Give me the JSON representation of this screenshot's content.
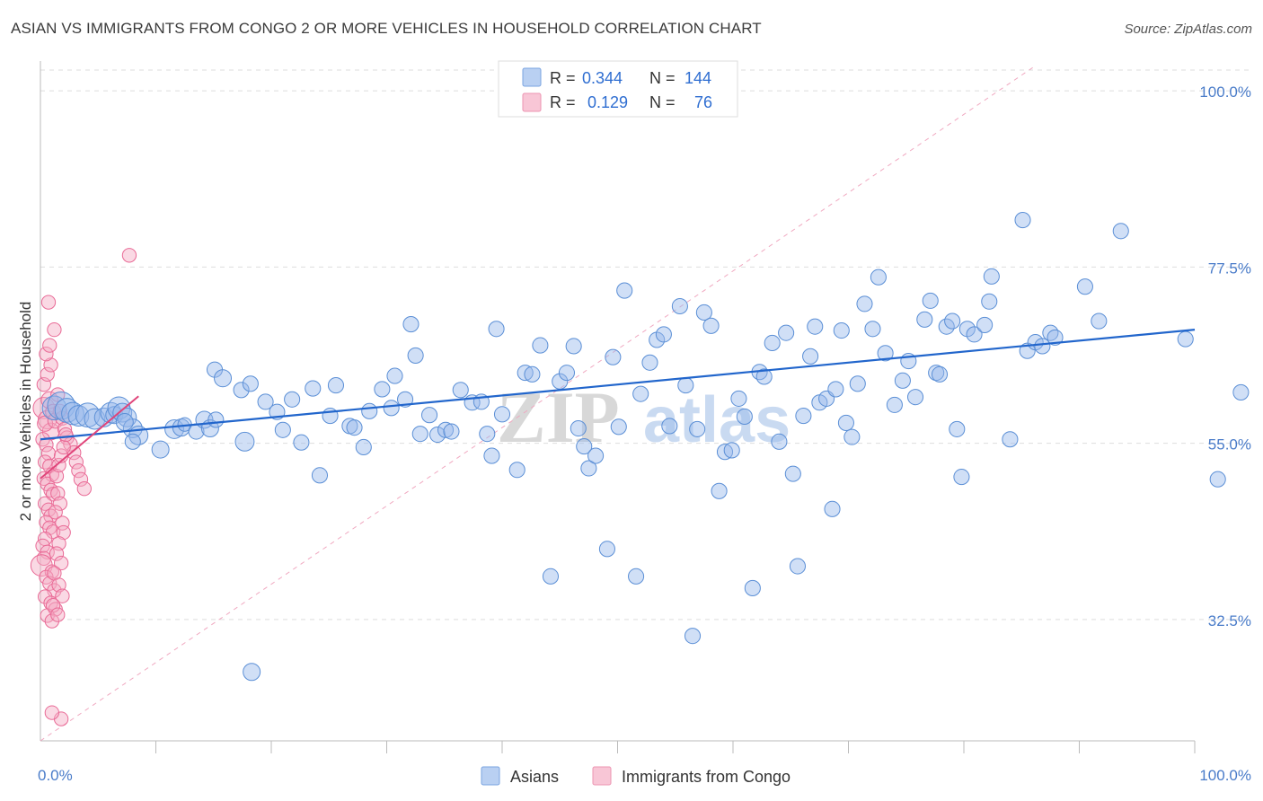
{
  "header": {
    "title": "ASIAN VS IMMIGRANTS FROM CONGO 2 OR MORE VEHICLES IN HOUSEHOLD CORRELATION CHART",
    "source": "Source: ZipAtlas.com"
  },
  "watermark": {
    "zip": "ZIP",
    "atlas": "atlas"
  },
  "colors": {
    "blue": "#5b8fd6",
    "blue_fill": "rgba(150,185,235,0.45)",
    "blue_line": "#2266cc",
    "pink": "#e96a96",
    "pink_fill": "rgba(245,170,195,0.45)",
    "pink_line": "#e0457a",
    "tick_text": "#4a7cc9",
    "grid": "#dddddd"
  },
  "legend": {
    "rows": [
      {
        "r_label": "R =",
        "r_value": "0.344",
        "n_label": "N =",
        "n_value": "144"
      },
      {
        "r_label": "R =",
        "r_value": "0.129",
        "n_label": "N =",
        "n_value": "76"
      }
    ]
  },
  "bottom_legend": {
    "series1": "Asians",
    "series2": "Immigrants from Congo"
  },
  "chart_data": {
    "type": "scatter",
    "ylabel": "2 or more Vehicles in Household",
    "xlim": [
      0,
      100
    ],
    "ylim": [
      17,
      103
    ],
    "ytick_labels": [
      "100.0%",
      "77.5%",
      "55.0%",
      "32.5%"
    ],
    "ytick_values": [
      100,
      77.5,
      55,
      32.5
    ],
    "xtick_labels": [
      "0.0%",
      "100.0%"
    ],
    "xtick_values": [
      0,
      100
    ],
    "grid": true,
    "legend_position": "top-center",
    "series": [
      {
        "name": "Asians",
        "r": 0.344,
        "n": 144,
        "trend": {
          "x": [
            0,
            100
          ],
          "y": [
            55.5,
            69.5
          ]
        },
        "points": [
          [
            1.2,
            59.5,
            14
          ],
          [
            1.8,
            59.8,
            16
          ],
          [
            2.3,
            59.2,
            14
          ],
          [
            2.8,
            58.8,
            13
          ],
          [
            3.3,
            58.5,
            12
          ],
          [
            4.1,
            58.6,
            14
          ],
          [
            4.7,
            58.1,
            12
          ],
          [
            5.5,
            58.3,
            11
          ],
          [
            6.1,
            58.9,
            12
          ],
          [
            6.4,
            58.6,
            10
          ],
          [
            6.8,
            59.5,
            13
          ],
          [
            7.1,
            58.9,
            11
          ],
          [
            7.5,
            58.3,
            11
          ],
          [
            8.0,
            56.9,
            11
          ],
          [
            8.5,
            56.0,
            11
          ],
          [
            8.0,
            55.2,
            9
          ],
          [
            7.3,
            57.7,
            10
          ],
          [
            10.4,
            54.2,
            10
          ],
          [
            11.6,
            56.8,
            11
          ],
          [
            12.2,
            57.0,
            10
          ],
          [
            12.5,
            57.4,
            8
          ],
          [
            13.5,
            56.5,
            9
          ],
          [
            14.2,
            58.0,
            10
          ],
          [
            14.7,
            56.9,
            10
          ],
          [
            15.1,
            64.4,
            9
          ],
          [
            15.8,
            63.3,
            10
          ],
          [
            15.2,
            58.0,
            9
          ],
          [
            17.7,
            55.2,
            11
          ],
          [
            17.4,
            61.8,
            9
          ],
          [
            18.2,
            62.6,
            9
          ],
          [
            19.5,
            60.3,
            9
          ],
          [
            20.5,
            59.0,
            9
          ],
          [
            21.0,
            56.7,
            9
          ],
          [
            21.8,
            60.6,
            9
          ],
          [
            22.6,
            55.1,
            9
          ],
          [
            23.6,
            62.0,
            9
          ],
          [
            24.2,
            50.9,
            9
          ],
          [
            25.1,
            58.5,
            9
          ],
          [
            25.6,
            62.4,
            9
          ],
          [
            26.8,
            57.2,
            9
          ],
          [
            27.2,
            57.0,
            9
          ],
          [
            28.0,
            54.5,
            9
          ],
          [
            28.5,
            59.1,
            9
          ],
          [
            29.6,
            61.9,
            9
          ],
          [
            30.4,
            59.5,
            9
          ],
          [
            30.7,
            63.6,
            9
          ],
          [
            31.6,
            60.6,
            9
          ],
          [
            32.1,
            70.2,
            9
          ],
          [
            32.5,
            66.2,
            9
          ],
          [
            32.9,
            56.2,
            9
          ],
          [
            33.7,
            58.6,
            9
          ],
          [
            34.4,
            56.1,
            9
          ],
          [
            35.1,
            56.7,
            9
          ],
          [
            35.6,
            56.5,
            9
          ],
          [
            36.4,
            61.8,
            9
          ],
          [
            37.4,
            60.2,
            9
          ],
          [
            38.2,
            60.3,
            9
          ],
          [
            38.7,
            56.2,
            9
          ],
          [
            39.1,
            53.4,
            9
          ],
          [
            39.5,
            69.6,
            9
          ],
          [
            40.0,
            58.7,
            9
          ],
          [
            41.3,
            51.6,
            9
          ],
          [
            42.0,
            64.0,
            9
          ],
          [
            42.6,
            63.8,
            9
          ],
          [
            43.3,
            67.5,
            9
          ],
          [
            44.2,
            38.0,
            9
          ],
          [
            45.0,
            62.9,
            9
          ],
          [
            45.6,
            64.0,
            9
          ],
          [
            46.2,
            67.4,
            9
          ],
          [
            46.6,
            56.9,
            9
          ],
          [
            47.1,
            54.6,
            9
          ],
          [
            47.5,
            51.8,
            9
          ],
          [
            48.1,
            53.4,
            9
          ],
          [
            49.1,
            41.5,
            9
          ],
          [
            49.6,
            66.0,
            9
          ],
          [
            50.1,
            57.1,
            9
          ],
          [
            50.6,
            74.5,
            9
          ],
          [
            51.6,
            38.0,
            9
          ],
          [
            52.0,
            61.3,
            9
          ],
          [
            52.8,
            65.3,
            9
          ],
          [
            53.4,
            68.2,
            9
          ],
          [
            54.0,
            68.9,
            9
          ],
          [
            54.5,
            57.2,
            9
          ],
          [
            55.4,
            72.5,
            9
          ],
          [
            55.9,
            62.4,
            9
          ],
          [
            56.5,
            30.4,
            9
          ],
          [
            56.9,
            56.8,
            9
          ],
          [
            57.5,
            71.7,
            9
          ],
          [
            58.1,
            70.0,
            9
          ],
          [
            58.8,
            48.9,
            9
          ],
          [
            59.3,
            53.9,
            9
          ],
          [
            59.9,
            54.1,
            9
          ],
          [
            60.5,
            60.7,
            9
          ],
          [
            61.0,
            58.4,
            9
          ],
          [
            61.7,
            36.5,
            9
          ],
          [
            62.3,
            64.1,
            9
          ],
          [
            62.7,
            63.5,
            9
          ],
          [
            63.4,
            67.8,
            9
          ],
          [
            64.0,
            55.2,
            9
          ],
          [
            64.6,
            69.1,
            9
          ],
          [
            65.2,
            51.1,
            9
          ],
          [
            65.6,
            39.3,
            9
          ],
          [
            66.1,
            58.5,
            9
          ],
          [
            66.7,
            66.1,
            9
          ],
          [
            67.1,
            69.9,
            9
          ],
          [
            67.5,
            60.2,
            9
          ],
          [
            68.1,
            60.7,
            9
          ],
          [
            68.6,
            46.6,
            9
          ],
          [
            68.9,
            61.9,
            9
          ],
          [
            69.4,
            69.4,
            9
          ],
          [
            69.8,
            57.6,
            9
          ],
          [
            70.3,
            55.8,
            9
          ],
          [
            70.8,
            62.6,
            9
          ],
          [
            71.4,
            72.8,
            9
          ],
          [
            72.1,
            69.6,
            9
          ],
          [
            72.6,
            76.2,
            9
          ],
          [
            73.2,
            66.5,
            9
          ],
          [
            74.0,
            59.9,
            9
          ],
          [
            74.7,
            63.0,
            9
          ],
          [
            75.2,
            65.5,
            9
          ],
          [
            75.8,
            60.9,
            9
          ],
          [
            76.6,
            70.8,
            9
          ],
          [
            77.1,
            73.2,
            9
          ],
          [
            77.6,
            64.0,
            9
          ],
          [
            77.9,
            63.8,
            9
          ],
          [
            78.5,
            69.9,
            9
          ],
          [
            79.0,
            70.6,
            9
          ],
          [
            79.4,
            56.8,
            9
          ],
          [
            79.8,
            50.7,
            9
          ],
          [
            80.3,
            69.6,
            9
          ],
          [
            80.9,
            68.9,
            9
          ],
          [
            81.8,
            70.1,
            9
          ],
          [
            82.2,
            73.1,
            9
          ],
          [
            82.4,
            76.3,
            9
          ],
          [
            84.0,
            55.5,
            9
          ],
          [
            85.1,
            83.5,
            9
          ],
          [
            85.5,
            66.8,
            9
          ],
          [
            86.2,
            67.9,
            9
          ],
          [
            86.8,
            67.4,
            9
          ],
          [
            87.5,
            69.1,
            9
          ],
          [
            87.9,
            68.5,
            9
          ],
          [
            90.5,
            75.0,
            9
          ],
          [
            91.7,
            70.6,
            9
          ],
          [
            93.6,
            82.1,
            9
          ],
          [
            99.2,
            68.3,
            9
          ],
          [
            102.0,
            50.4,
            9
          ],
          [
            104.0,
            61.5,
            9
          ],
          [
            18.3,
            25.8,
            10
          ]
        ]
      },
      {
        "name": "Immigrants from Congo",
        "r": 0.129,
        "n": 76,
        "trend": {
          "x": [
            0,
            8.5
          ],
          "y": [
            50.5,
            61.0
          ]
        },
        "points": [
          [
            0.3,
            59.5,
            14
          ],
          [
            0.6,
            58.0,
            12
          ],
          [
            0.9,
            56.5,
            11
          ],
          [
            0.4,
            57.5,
            10
          ],
          [
            0.8,
            60.5,
            11
          ],
          [
            1.1,
            59.0,
            10
          ],
          [
            1.3,
            57.9,
            10
          ],
          [
            0.2,
            55.5,
            9
          ],
          [
            0.5,
            54.8,
            9
          ],
          [
            0.7,
            53.7,
            9
          ],
          [
            0.4,
            52.6,
            9
          ],
          [
            0.8,
            52.1,
            9
          ],
          [
            1.0,
            51.0,
            9
          ],
          [
            0.3,
            50.5,
            9
          ],
          [
            0.6,
            49.8,
            9
          ],
          [
            0.9,
            49.0,
            9
          ],
          [
            1.1,
            48.5,
            9
          ],
          [
            0.4,
            47.3,
            9
          ],
          [
            0.7,
            46.5,
            9
          ],
          [
            0.9,
            45.7,
            9
          ],
          [
            0.5,
            44.9,
            9
          ],
          [
            0.8,
            44.2,
            9
          ],
          [
            1.1,
            43.7,
            9
          ],
          [
            0.4,
            42.8,
            9
          ],
          [
            0.2,
            41.9,
            9
          ],
          [
            0.6,
            41.1,
            9
          ],
          [
            0.3,
            40.3,
            9
          ],
          [
            0.1,
            39.4,
            14
          ],
          [
            1.0,
            38.6,
            9
          ],
          [
            0.5,
            37.9,
            9
          ],
          [
            0.8,
            37.1,
            9
          ],
          [
            1.2,
            36.2,
            9
          ],
          [
            0.4,
            35.4,
            9
          ],
          [
            0.9,
            34.6,
            9
          ],
          [
            1.3,
            33.8,
            9
          ],
          [
            0.6,
            33.0,
            9
          ],
          [
            1.0,
            32.3,
            9
          ],
          [
            0.3,
            62.5,
            9
          ],
          [
            0.6,
            63.8,
            9
          ],
          [
            0.9,
            65.0,
            9
          ],
          [
            0.5,
            66.4,
            9
          ],
          [
            0.8,
            67.5,
            9
          ],
          [
            0.7,
            73.0,
            9
          ],
          [
            1.2,
            69.5,
            9
          ],
          [
            7.7,
            79.0,
            9
          ],
          [
            1.5,
            61.2,
            9
          ],
          [
            1.7,
            59.1,
            9
          ],
          [
            1.9,
            58.2,
            9
          ],
          [
            2.1,
            56.8,
            9
          ],
          [
            2.3,
            55.7,
            9
          ],
          [
            2.6,
            54.9,
            9
          ],
          [
            2.9,
            53.8,
            9
          ],
          [
            3.1,
            52.6,
            9
          ],
          [
            3.3,
            51.5,
            9
          ],
          [
            3.5,
            50.4,
            9
          ],
          [
            3.8,
            49.2,
            9
          ],
          [
            1.4,
            50.8,
            9
          ],
          [
            1.6,
            52.2,
            9
          ],
          [
            1.8,
            53.4,
            9
          ],
          [
            2.0,
            54.5,
            9
          ],
          [
            2.2,
            56.1,
            9
          ],
          [
            1.5,
            48.6,
            9
          ],
          [
            1.7,
            47.3,
            9
          ],
          [
            1.3,
            46.2,
            9
          ],
          [
            1.9,
            44.8,
            9
          ],
          [
            2.0,
            43.6,
            9
          ],
          [
            1.6,
            42.2,
            9
          ],
          [
            1.4,
            40.9,
            9
          ],
          [
            1.8,
            39.7,
            9
          ],
          [
            1.2,
            38.4,
            9
          ],
          [
            1.6,
            36.9,
            9
          ],
          [
            1.9,
            35.5,
            9
          ],
          [
            1.1,
            34.3,
            9
          ],
          [
            1.5,
            33.1,
            9
          ],
          [
            1.8,
            19.8,
            9
          ],
          [
            1.0,
            20.6,
            9
          ]
        ]
      }
    ]
  }
}
